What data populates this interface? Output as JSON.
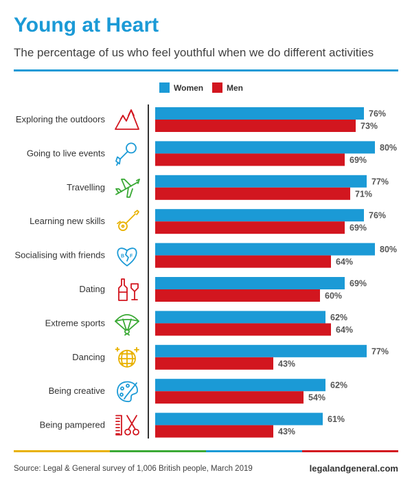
{
  "header": {
    "title": "Young at Heart",
    "subtitle": "The percentage of us who feel youthful when we do different activities"
  },
  "footer": {
    "source": "Source: Legal & General survey of 1,006 British people, March 2019",
    "website": "legalandgeneral.com",
    "rule_colors": [
      "#e8b100",
      "#3aa935",
      "#1b9ad6",
      "#d2161f"
    ]
  },
  "colors": {
    "women": "#1b9ad6",
    "men": "#d2161f",
    "divider": "#333333"
  },
  "chart_data": {
    "type": "bar",
    "orientation": "horizontal",
    "title": "Young at Heart",
    "categories": [
      "Exploring the outdoors",
      "Going to live events",
      "Travelling",
      "Learning new skills",
      "Socialising with friends",
      "Dating",
      "Extreme sports",
      "Dancing",
      "Being creative",
      "Being pampered"
    ],
    "series": [
      {
        "name": "Women",
        "values": [
          76,
          80,
          77,
          76,
          80,
          69,
          62,
          77,
          62,
          61
        ]
      },
      {
        "name": "Men",
        "values": [
          73,
          69,
          71,
          69,
          64,
          60,
          64,
          43,
          54,
          43
        ]
      }
    ],
    "value_suffix": "%",
    "legend_position": "top-center",
    "grid": false,
    "icons": [
      {
        "name": "mountains-icon",
        "color": "#d2161f"
      },
      {
        "name": "microphone-icon",
        "color": "#1b9ad6"
      },
      {
        "name": "airplane-icon",
        "color": "#3aa935"
      },
      {
        "name": "guitar-icon",
        "color": "#e8b100"
      },
      {
        "name": "bff-heart-icon",
        "color": "#1b9ad6"
      },
      {
        "name": "wine-bottle-glass-icon",
        "color": "#d2161f"
      },
      {
        "name": "paraglider-icon",
        "color": "#3aa935"
      },
      {
        "name": "disco-ball-icon",
        "color": "#e8b100"
      },
      {
        "name": "paint-palette-icon",
        "color": "#1b9ad6"
      },
      {
        "name": "comb-scissors-icon",
        "color": "#d2161f"
      }
    ]
  }
}
